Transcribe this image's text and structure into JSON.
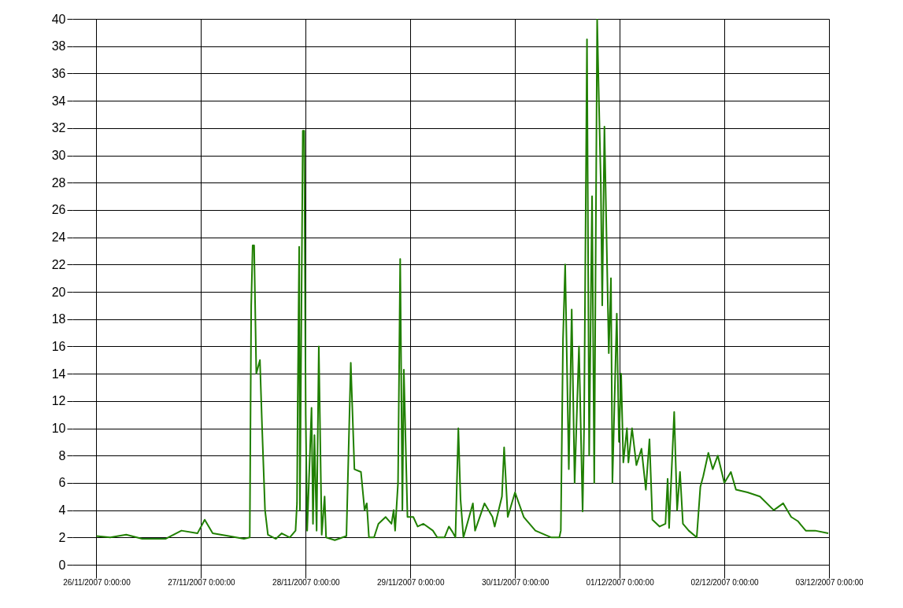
{
  "chart_data": {
    "type": "line",
    "x": [
      "2007-11-26T00:00",
      "2007-11-26T03:10",
      "2007-11-26T06:50",
      "2007-11-26T10:30",
      "2007-11-26T15:50",
      "2007-11-26T19:30",
      "2007-11-26T23:10",
      "2007-11-27T00:50",
      "2007-11-27T02:40",
      "2007-11-27T06:20",
      "2007-11-27T09:50",
      "2007-11-27T11:10",
      "2007-11-27T11:30",
      "2007-11-27T11:50",
      "2007-11-27T12:10",
      "2007-11-27T12:40",
      "2007-11-27T13:30",
      "2007-11-27T14:00",
      "2007-11-27T14:40",
      "2007-11-27T15:20",
      "2007-11-27T17:10",
      "2007-11-27T18:30",
      "2007-11-27T20:20",
      "2007-11-27T21:40",
      "2007-11-27T22:00",
      "2007-11-27T22:10",
      "2007-11-27T22:30",
      "2007-11-27T22:40",
      "2007-11-27T23:20",
      "2007-11-27T23:40",
      "2007-11-28T00:00",
      "2007-11-28T00:20",
      "2007-11-28T01:20",
      "2007-11-28T01:40",
      "2007-11-28T02:00",
      "2007-11-28T02:30",
      "2007-11-28T03:00",
      "2007-11-28T03:40",
      "2007-11-28T04:20",
      "2007-11-28T04:40",
      "2007-11-28T06:40",
      "2007-11-28T09:20",
      "2007-11-28T10:20",
      "2007-11-28T11:10",
      "2007-11-28T12:40",
      "2007-11-28T13:30",
      "2007-11-28T14:00",
      "2007-11-28T14:30",
      "2007-11-28T15:40",
      "2007-11-28T16:40",
      "2007-11-28T18:20",
      "2007-11-28T19:40",
      "2007-11-28T20:10",
      "2007-11-28T20:30",
      "2007-11-28T21:10",
      "2007-11-28T21:40",
      "2007-11-28T22:10",
      "2007-11-28T22:30",
      "2007-11-28T23:20",
      "2007-11-29T00:40",
      "2007-11-29T01:40",
      "2007-11-29T03:00",
      "2007-11-29T05:10",
      "2007-11-29T06:10",
      "2007-11-29T07:50",
      "2007-11-29T08:50",
      "2007-11-29T09:40",
      "2007-11-29T10:20",
      "2007-11-29T11:00",
      "2007-11-29T11:30",
      "2007-11-29T12:10",
      "2007-11-29T14:20",
      "2007-11-29T14:50",
      "2007-11-29T17:00",
      "2007-11-29T18:50",
      "2007-11-29T19:20",
      "2007-11-29T21:00",
      "2007-11-29T21:30",
      "2007-11-29T22:20",
      "2007-11-30T00:00",
      "2007-11-30T02:00",
      "2007-11-30T04:40",
      "2007-11-30T08:20",
      "2007-11-30T10:10",
      "2007-11-30T10:30",
      "2007-11-30T11:00",
      "2007-11-30T11:30",
      "2007-11-30T12:20",
      "2007-11-30T13:00",
      "2007-11-30T13:40",
      "2007-11-30T14:40",
      "2007-11-30T15:30",
      "2007-11-30T15:50",
      "2007-11-30T16:30",
      "2007-11-30T17:00",
      "2007-11-30T17:40",
      "2007-11-30T18:10",
      "2007-11-30T18:50",
      "2007-11-30T19:10",
      "2007-11-30T19:40",
      "2007-11-30T20:00",
      "2007-11-30T20:30",
      "2007-11-30T21:30",
      "2007-11-30T22:00",
      "2007-11-30T22:20",
      "2007-11-30T23:20",
      "2007-11-30T23:50",
      "2007-12-01T00:20",
      "2007-12-01T00:50",
      "2007-12-01T01:40",
      "2007-12-01T02:00",
      "2007-12-01T02:50",
      "2007-12-01T03:50",
      "2007-12-01T05:00",
      "2007-12-01T06:00",
      "2007-12-01T06:50",
      "2007-12-01T07:30",
      "2007-12-01T09:10",
      "2007-12-01T10:30",
      "2007-12-01T11:00",
      "2007-12-01T11:20",
      "2007-12-01T12:30",
      "2007-12-01T13:10",
      "2007-12-01T13:50",
      "2007-12-01T14:30",
      "2007-12-01T15:50",
      "2007-12-01T17:40",
      "2007-12-01T18:30",
      "2007-12-01T19:10",
      "2007-12-01T20:20",
      "2007-12-01T21:20",
      "2007-12-01T22:30",
      "2007-12-02T00:00",
      "2007-12-02T01:30",
      "2007-12-02T02:40",
      "2007-12-02T05:20",
      "2007-12-02T08:10",
      "2007-12-02T11:20",
      "2007-12-02T13:30",
      "2007-12-02T15:20",
      "2007-12-02T16:50",
      "2007-12-02T18:40",
      "2007-12-02T20:50",
      "2007-12-02T23:50"
    ],
    "series": [
      {
        "color": "#1f7f00",
        "values": [
          2.1,
          2.0,
          2.2,
          1.9,
          1.9,
          2.5,
          2.3,
          3.3,
          2.3,
          2.1,
          1.9,
          2.0,
          19,
          23.4,
          23.4,
          14,
          15,
          10,
          4,
          2.2,
          1.9,
          2.3,
          2.0,
          2.5,
          4.5,
          12,
          23.3,
          4,
          31.8,
          31.8,
          11,
          2.5,
          11.5,
          3,
          9.5,
          2.5,
          16,
          2.2,
          5,
          2,
          1.8,
          2.1,
          14.8,
          7,
          6.8,
          4,
          4.5,
          2,
          2,
          3,
          3.5,
          3,
          4,
          2.5,
          6,
          22.4,
          4,
          14.3,
          3.5,
          3.5,
          2.8,
          3,
          2.5,
          2,
          2,
          2.8,
          2.4,
          2,
          10,
          4.8,
          2,
          4.5,
          2.5,
          4.5,
          3.5,
          2.8,
          5,
          8.6,
          3.5,
          5.3,
          3.5,
          2.5,
          2,
          2,
          2.5,
          16.5,
          22,
          7,
          18.7,
          6,
          16,
          3.9,
          10,
          38.5,
          8,
          27,
          6,
          40,
          35,
          28,
          19,
          32.1,
          15.5,
          21,
          6,
          18.4,
          9,
          14,
          7.5,
          10,
          7.5,
          10,
          7.3,
          8.5,
          5.5,
          9.2,
          3.3,
          2.8,
          3,
          6.3,
          2.7,
          11.2,
          4,
          6.8,
          3,
          2.5,
          2,
          5.7,
          6.5,
          8.2,
          7,
          8,
          6,
          6.8,
          5.5,
          5.3,
          5,
          4,
          4.5,
          3.5,
          3.2,
          2.5,
          2.5,
          2.3
        ]
      }
    ],
    "xlim": [
      "2007-11-25T18:30",
      "2007-12-03T00:00"
    ],
    "xticks": [
      {
        "value": "2007-11-26T00:00",
        "label": "26/11/2007 0:00:00"
      },
      {
        "value": "2007-11-27T00:00",
        "label": "27/11/2007 0:00:00"
      },
      {
        "value": "2007-11-28T00:00",
        "label": "28/11/2007 0:00:00"
      },
      {
        "value": "2007-11-29T00:00",
        "label": "29/11/2007 0:00:00"
      },
      {
        "value": "2007-11-30T00:00",
        "label": "30/11/2007 0:00:00"
      },
      {
        "value": "2007-12-01T00:00",
        "label": "01/12/2007 0:00:00"
      },
      {
        "value": "2007-12-02T00:00",
        "label": "02/12/2007 0:00:00"
      },
      {
        "value": "2007-12-03T00:00",
        "label": "03/12/2007 0:00:00"
      }
    ],
    "ylim": [
      0,
      40
    ],
    "yticks": [
      0,
      2,
      4,
      6,
      8,
      10,
      12,
      14,
      16,
      18,
      20,
      22,
      24,
      26,
      28,
      30,
      32,
      34,
      36,
      38,
      40
    ],
    "grid": true,
    "marker": "none",
    "line_style": "solid"
  }
}
